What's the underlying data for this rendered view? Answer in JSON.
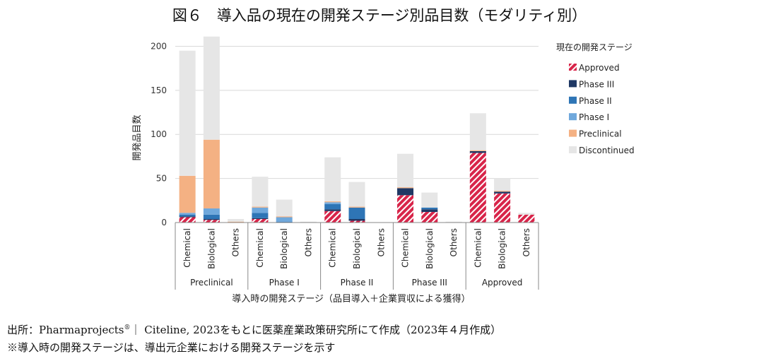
{
  "title": "図６　導入品の現在の開発ステージ別品目数（モダリティ別）",
  "chart_data": {
    "type": "bar",
    "stacked": true,
    "ylabel": "開発品目数",
    "xlabel": "導入時の開発ステージ（品目導入＋企業買収による獲得）",
    "legend_title": "現在の開発ステージ",
    "legend_position": "right",
    "ylim": [
      0,
      210
    ],
    "yticks": [
      0,
      50,
      100,
      150,
      200
    ],
    "grid": true,
    "groups": [
      "Preclinical",
      "Phase I",
      "Phase II",
      "Phase III",
      "Approved"
    ],
    "categories": [
      "Chemical",
      "Biological",
      "Others"
    ],
    "series_names": [
      "Approved",
      "Phase III",
      "Phase II",
      "Phase I",
      "Preclinical",
      "Discontinued"
    ],
    "series_colors": [
      "#d8254a",
      "#1f3864",
      "#2e75b6",
      "#6fa8dc",
      "#f4b183",
      "#e6e6e6"
    ],
    "bars": [
      {
        "group": "Preclinical",
        "category": "Chemical",
        "values": [
          6,
          1,
          2,
          2,
          42,
          142
        ]
      },
      {
        "group": "Preclinical",
        "category": "Biological",
        "values": [
          3,
          1,
          5,
          7,
          78,
          117
        ]
      },
      {
        "group": "Preclinical",
        "category": "Others",
        "values": [
          0,
          0,
          0,
          0,
          1,
          3
        ]
      },
      {
        "group": "Phase I",
        "category": "Chemical",
        "values": [
          4,
          1,
          6,
          6,
          1,
          34
        ]
      },
      {
        "group": "Phase I",
        "category": "Biological",
        "values": [
          0,
          0,
          1,
          5,
          1,
          19
        ]
      },
      {
        "group": "Phase I",
        "category": "Others",
        "values": [
          0,
          0,
          0,
          0,
          0,
          1
        ]
      },
      {
        "group": "Phase II",
        "category": "Chemical",
        "values": [
          13,
          2,
          6,
          2,
          1,
          50
        ]
      },
      {
        "group": "Phase II",
        "category": "Biological",
        "values": [
          2,
          2,
          13,
          0,
          1,
          28
        ]
      },
      {
        "group": "Phase II",
        "category": "Others",
        "values": [
          0,
          0,
          0,
          0,
          0,
          0
        ]
      },
      {
        "group": "Phase III",
        "category": "Chemical",
        "values": [
          31,
          8,
          0,
          0,
          1,
          38
        ]
      },
      {
        "group": "Phase III",
        "category": "Biological",
        "values": [
          12,
          3,
          2,
          0,
          0,
          17
        ]
      },
      {
        "group": "Phase III",
        "category": "Others",
        "values": [
          0,
          0,
          0,
          0,
          0,
          1
        ]
      },
      {
        "group": "Approved",
        "category": "Chemical",
        "values": [
          79,
          2,
          0,
          0,
          1,
          42
        ]
      },
      {
        "group": "Approved",
        "category": "Biological",
        "values": [
          33,
          2,
          0,
          0,
          1,
          14
        ]
      },
      {
        "group": "Approved",
        "category": "Others",
        "values": [
          9,
          0,
          0,
          0,
          0,
          2
        ]
      }
    ]
  },
  "footnotes": {
    "source_prefix": "出所：Pharmaprojects",
    "source_reg": "®",
    "source_suffix": "｜ Citeline, 2023をもとに医薬産業政策研究所にて作成（2023年４月作成）",
    "note": "※導入時の開発ステージは、導出元企業における開発ステージを示す"
  }
}
